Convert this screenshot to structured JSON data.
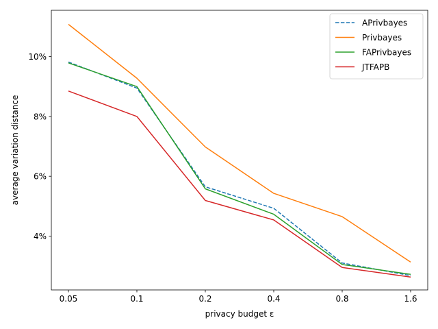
{
  "chart_data": {
    "type": "line",
    "title": "",
    "xlabel": "privacy budget ε",
    "ylabel": "average variation distance",
    "categories": [
      "0.05",
      "0.1",
      "0.2",
      "0.4",
      "0.8",
      "1.6"
    ],
    "yticks": [
      4,
      6,
      8,
      10
    ],
    "ytick_labels": [
      "4%",
      "6%",
      "8%",
      "10%"
    ],
    "ylim": [
      2.2,
      11.55
    ],
    "y_unit": "%",
    "grid": false,
    "legend_position": "top-right",
    "series": [
      {
        "name": "APrivbayes",
        "values": [
          9.82,
          8.95,
          5.65,
          4.93,
          3.1,
          2.68
        ],
        "color": "#1f77b4",
        "dashed": true
      },
      {
        "name": "Privbayes",
        "values": [
          11.08,
          9.28,
          6.98,
          5.43,
          4.65,
          3.13
        ],
        "color": "#ff7f0e",
        "dashed": false
      },
      {
        "name": "FAPrivbayes",
        "values": [
          9.79,
          9.0,
          5.58,
          4.73,
          3.05,
          2.72
        ],
        "color": "#2ca02c",
        "dashed": false
      },
      {
        "name": "JTFAPB",
        "values": [
          8.85,
          8.0,
          5.19,
          4.54,
          2.95,
          2.63
        ],
        "color": "#d62728",
        "dashed": false
      }
    ]
  }
}
